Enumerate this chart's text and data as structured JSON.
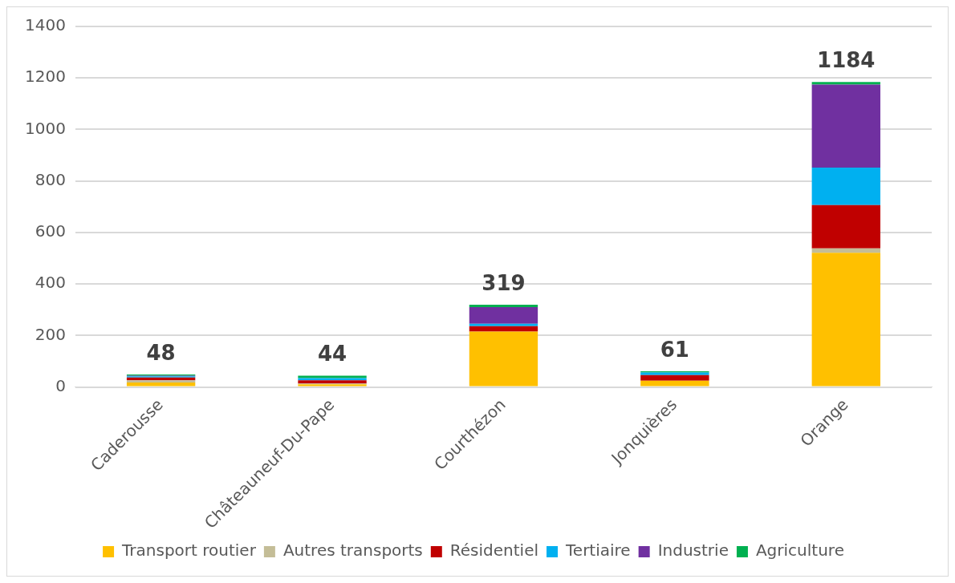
{
  "chart_data": {
    "type": "bar",
    "stacked": true,
    "categories": [
      "Caderousse",
      "Châteauneuf-Du-Pape",
      "Courthézon",
      "Jonquières",
      "Orange"
    ],
    "series": [
      {
        "name": "Transport routier",
        "color": "#ffc000",
        "values": [
          17,
          10,
          215,
          24,
          521
        ]
      },
      {
        "name": "Autres transports",
        "color": "#c4bd97",
        "values": [
          9,
          3,
          0,
          null,
          17
        ]
      },
      {
        "name": "Résidentiel",
        "color": "#c00000",
        "values": [
          11,
          13,
          21,
          22,
          168
        ]
      },
      {
        "name": "Tertiaire",
        "color": "#00b0f0",
        "values": [
          4,
          8,
          9,
          10,
          146
        ]
      },
      {
        "name": "Industrie",
        "color": "#7030a0",
        "values": [
          3,
          null,
          65,
          0,
          322
        ]
      },
      {
        "name": "Agriculture",
        "color": "#00b050",
        "values": [
          4,
          10,
          9,
          5,
          10
        ]
      }
    ],
    "totals": [
      "48",
      "44",
      "319",
      "61",
      "1184"
    ],
    "ylim": [
      0,
      1400
    ],
    "yticks": [
      0,
      200,
      400,
      600,
      800,
      1000,
      1200,
      1400
    ],
    "grid": "y",
    "legend": "bottom"
  }
}
